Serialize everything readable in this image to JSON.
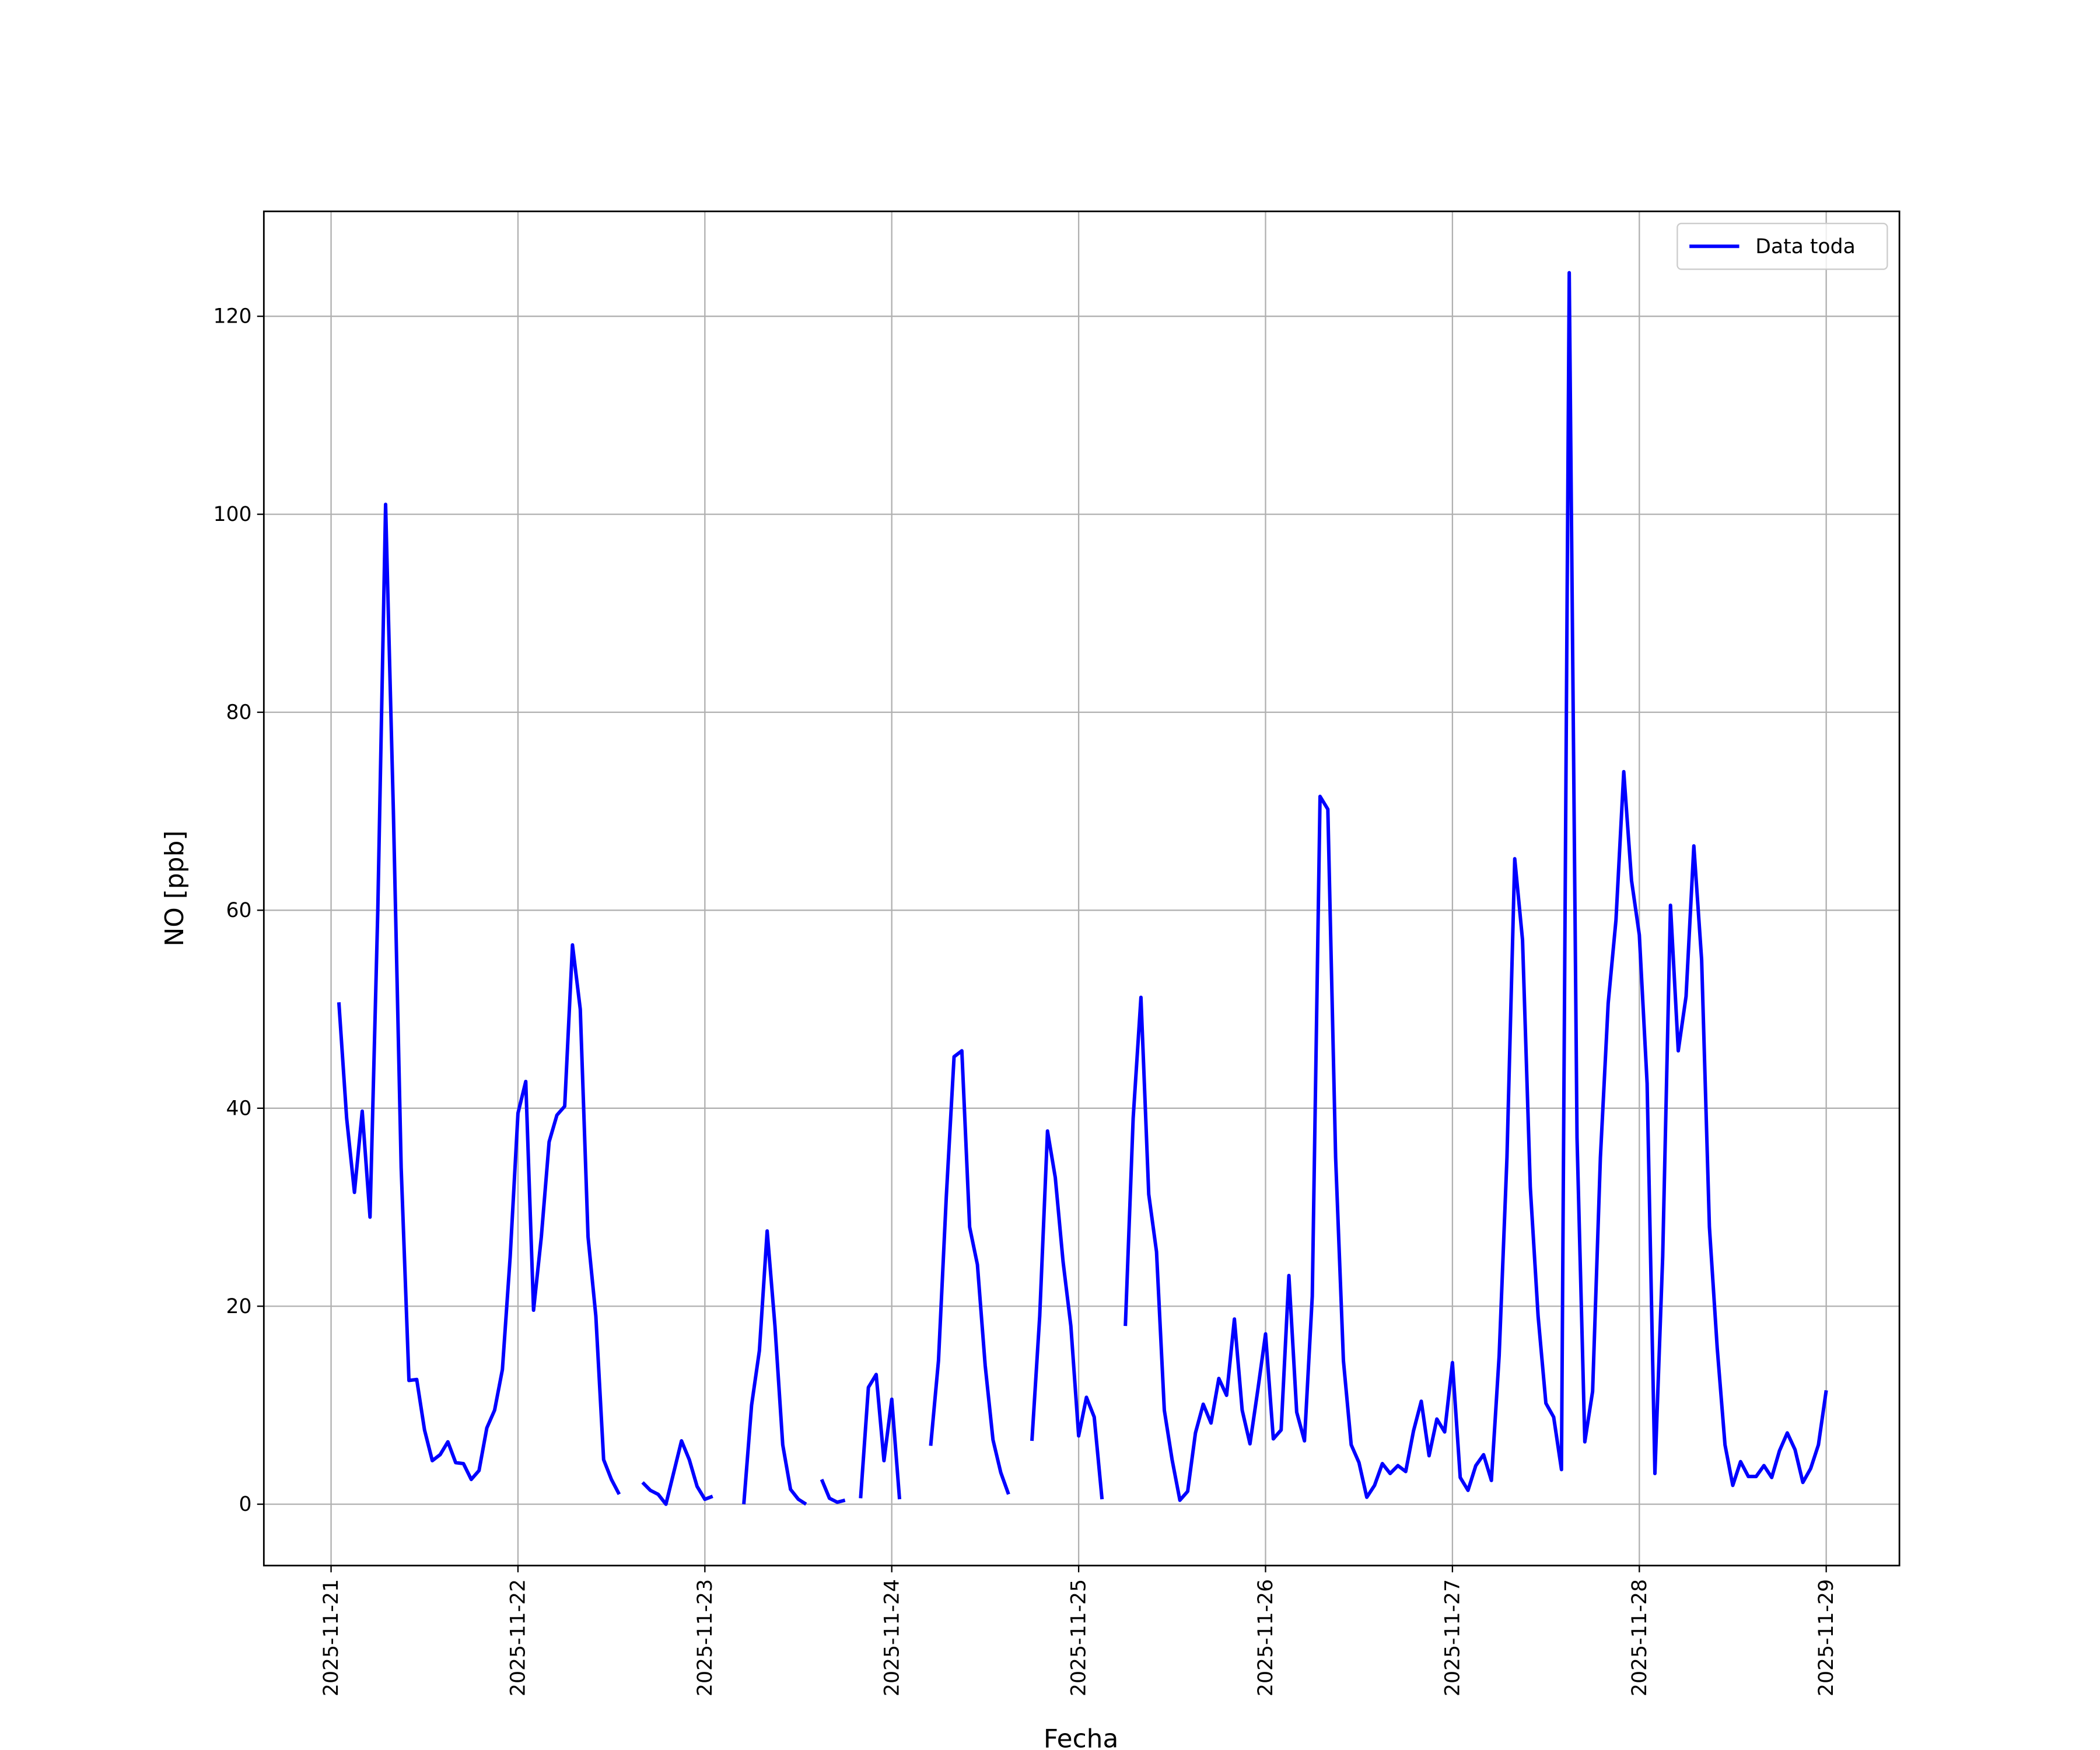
{
  "chart_data": {
    "type": "line",
    "xlabel": "Fecha",
    "ylabel": "NO [ppb]",
    "x": [
      "2025-11-21 01:00",
      "2025-11-21 02:00",
      "2025-11-21 03:00",
      "2025-11-21 04:00",
      "2025-11-21 05:00",
      "2025-11-21 06:00",
      "2025-11-21 07:00",
      "2025-11-21 08:00",
      "2025-11-21 09:00",
      "2025-11-21 10:00",
      "2025-11-21 11:00",
      "2025-11-21 12:00",
      "2025-11-21 13:00",
      "2025-11-21 14:00",
      "2025-11-21 15:00",
      "2025-11-21 16:00",
      "2025-11-21 17:00",
      "2025-11-21 18:00",
      "2025-11-21 19:00",
      "2025-11-21 20:00",
      "2025-11-21 21:00",
      "2025-11-21 22:00",
      "2025-11-21 23:00",
      "2025-11-22 00:00",
      "2025-11-22 01:00",
      "2025-11-22 02:00",
      "2025-11-22 03:00",
      "2025-11-22 04:00",
      "2025-11-22 05:00",
      "2025-11-22 06:00",
      "2025-11-22 07:00",
      "2025-11-22 08:00",
      "2025-11-22 09:00",
      "2025-11-22 10:00",
      "2025-11-22 11:00",
      "2025-11-22 12:00",
      "2025-11-22 13:00",
      "2025-11-22 14:00",
      "2025-11-22 15:00",
      "2025-11-22 16:00",
      "2025-11-22 17:00",
      "2025-11-22 18:00",
      "2025-11-22 19:00",
      "2025-11-22 20:00",
      "2025-11-22 21:00",
      "2025-11-22 22:00",
      "2025-11-22 23:00",
      "2025-11-23 00:00",
      "2025-11-23 01:00",
      "2025-11-23 02:00",
      "2025-11-23 03:00",
      "2025-11-23 04:00",
      "2025-11-23 05:00",
      "2025-11-23 06:00",
      "2025-11-23 07:00",
      "2025-11-23 08:00",
      "2025-11-23 09:00",
      "2025-11-23 10:00",
      "2025-11-23 11:00",
      "2025-11-23 12:00",
      "2025-11-23 13:00",
      "2025-11-23 14:00",
      "2025-11-23 15:00",
      "2025-11-23 16:00",
      "2025-11-23 17:00",
      "2025-11-23 18:00",
      "2025-11-23 19:00",
      "2025-11-23 20:00",
      "2025-11-23 21:00",
      "2025-11-23 22:00",
      "2025-11-23 23:00",
      "2025-11-24 00:00",
      "2025-11-24 01:00",
      "2025-11-24 02:00",
      "2025-11-24 03:00",
      "2025-11-24 04:00",
      "2025-11-24 05:00",
      "2025-11-24 06:00",
      "2025-11-24 07:00",
      "2025-11-24 08:00",
      "2025-11-24 09:00",
      "2025-11-24 10:00",
      "2025-11-24 11:00",
      "2025-11-24 12:00",
      "2025-11-24 13:00",
      "2025-11-24 14:00",
      "2025-11-24 15:00",
      "2025-11-24 16:00",
      "2025-11-24 17:00",
      "2025-11-24 18:00",
      "2025-11-24 19:00",
      "2025-11-24 20:00",
      "2025-11-24 21:00",
      "2025-11-24 22:00",
      "2025-11-24 23:00",
      "2025-11-25 00:00",
      "2025-11-25 01:00",
      "2025-11-25 02:00",
      "2025-11-25 03:00",
      "2025-11-25 04:00",
      "2025-11-25 05:00",
      "2025-11-25 06:00",
      "2025-11-25 07:00",
      "2025-11-25 08:00",
      "2025-11-25 09:00",
      "2025-11-25 10:00",
      "2025-11-25 11:00",
      "2025-11-25 12:00",
      "2025-11-25 13:00",
      "2025-11-25 14:00",
      "2025-11-25 15:00",
      "2025-11-25 16:00",
      "2025-11-25 17:00",
      "2025-11-25 18:00",
      "2025-11-25 19:00",
      "2025-11-25 20:00",
      "2025-11-25 21:00",
      "2025-11-25 22:00",
      "2025-11-25 23:00",
      "2025-11-26 00:00",
      "2025-11-26 01:00",
      "2025-11-26 02:00",
      "2025-11-26 03:00",
      "2025-11-26 04:00",
      "2025-11-26 05:00",
      "2025-11-26 06:00",
      "2025-11-26 07:00",
      "2025-11-26 08:00",
      "2025-11-26 09:00",
      "2025-11-26 10:00",
      "2025-11-26 11:00",
      "2025-11-26 12:00",
      "2025-11-26 13:00",
      "2025-11-26 14:00",
      "2025-11-26 15:00",
      "2025-11-26 16:00",
      "2025-11-26 17:00",
      "2025-11-26 18:00",
      "2025-11-26 19:00",
      "2025-11-26 20:00",
      "2025-11-26 21:00",
      "2025-11-26 22:00",
      "2025-11-26 23:00",
      "2025-11-27 00:00",
      "2025-11-27 01:00",
      "2025-11-27 02:00",
      "2025-11-27 03:00",
      "2025-11-27 04:00",
      "2025-11-27 05:00",
      "2025-11-27 06:00",
      "2025-11-27 07:00",
      "2025-11-27 08:00",
      "2025-11-27 09:00",
      "2025-11-27 10:00",
      "2025-11-27 11:00",
      "2025-11-27 12:00",
      "2025-11-27 13:00",
      "2025-11-27 14:00",
      "2025-11-27 15:00",
      "2025-11-27 16:00",
      "2025-11-27 17:00",
      "2025-11-27 18:00",
      "2025-11-27 19:00",
      "2025-11-27 20:00",
      "2025-11-27 21:00",
      "2025-11-27 22:00",
      "2025-11-27 23:00",
      "2025-11-28 00:00",
      "2025-11-28 01:00",
      "2025-11-28 02:00",
      "2025-11-28 03:00",
      "2025-11-28 04:00",
      "2025-11-28 05:00",
      "2025-11-28 06:00",
      "2025-11-28 07:00",
      "2025-11-28 08:00",
      "2025-11-28 09:00",
      "2025-11-28 10:00",
      "2025-11-28 11:00",
      "2025-11-28 12:00",
      "2025-11-28 13:00",
      "2025-11-28 14:00",
      "2025-11-28 15:00",
      "2025-11-28 16:00",
      "2025-11-28 17:00",
      "2025-11-28 18:00",
      "2025-11-28 19:00",
      "2025-11-28 20:00",
      "2025-11-28 21:00",
      "2025-11-28 22:00",
      "2025-11-28 23:00",
      "2025-11-29 00:00"
    ],
    "series": [
      {
        "name": "Data toda",
        "color": "#0000ff",
        "values": [
          50.7,
          39,
          31.5,
          39.7,
          29,
          60,
          101,
          70,
          34,
          12.5,
          12.6,
          7.5,
          4.4,
          5,
          6.3,
          4.2,
          4.1,
          2.5,
          3.4,
          7.7,
          9.5,
          13.6,
          25,
          39.5,
          42.7,
          19.6,
          27,
          36.6,
          39.3,
          40.2,
          56.5,
          50,
          27,
          19,
          4.5,
          2.5,
          1,
          null,
          null,
          2.2,
          1.4,
          1,
          0,
          3.2,
          6.4,
          4.5,
          1.8,
          0.5,
          0.8,
          null,
          null,
          null,
          0,
          10,
          15.5,
          27.6,
          18,
          6,
          1.5,
          0.5,
          0,
          null,
          2.5,
          0.6,
          0.2,
          0.4,
          null,
          0.6,
          11.8,
          13.1,
          4.4,
          10.6,
          0.5,
          null,
          null,
          null,
          5.9,
          14.5,
          31,
          45.2,
          45.8,
          28,
          24.2,
          14,
          6.5,
          3.2,
          1,
          null,
          null,
          6.4,
          19,
          37.7,
          33,
          24.5,
          18,
          6.9,
          10.8,
          8.8,
          0.5,
          null,
          null,
          18,
          39,
          51.2,
          31.3,
          25.5,
          9.5,
          4.5,
          0.4,
          1.3,
          7.2,
          10.1,
          8.2,
          12.7,
          11,
          18.7,
          9.5,
          6.1,
          11.5,
          17.2,
          6.6,
          7.5,
          23.1,
          9.3,
          6.4,
          21,
          71.5,
          70.2,
          35,
          14.5,
          6,
          4.2,
          0.7,
          1.9,
          4.1,
          3.1,
          3.9,
          3.3,
          7.4,
          10.4,
          4.9,
          8.6,
          7.3,
          14.3,
          2.7,
          1.4,
          3.9,
          5,
          2.4,
          15,
          35,
          65.2,
          57,
          32,
          19,
          10.2,
          8.8,
          3.5,
          124.4,
          37,
          6.3,
          11.4,
          35,
          50.6,
          59,
          74,
          63,
          57.5,
          42.5,
          3.1,
          25,
          60.5,
          45.8,
          51.3,
          66.5,
          55,
          28,
          15.8,
          6,
          1.9,
          4.3,
          2.8,
          2.8,
          3.9,
          2.7,
          5.4,
          7.2,
          5.5,
          2.2,
          3.6,
          6,
          11.5
        ]
      }
    ],
    "xlim": [
      "2025-11-20 15:22",
      "2025-11-29 09:24"
    ],
    "xticks": [
      "2025-11-21",
      "2025-11-22",
      "2025-11-23",
      "2025-11-24",
      "2025-11-25",
      "2025-11-26",
      "2025-11-27",
      "2025-11-28",
      "2025-11-29"
    ],
    "ylim": [
      -6.2,
      130.6
    ],
    "yticks": [
      0,
      20,
      40,
      60,
      80,
      100,
      120
    ],
    "grid": true,
    "legend": "upper right"
  }
}
